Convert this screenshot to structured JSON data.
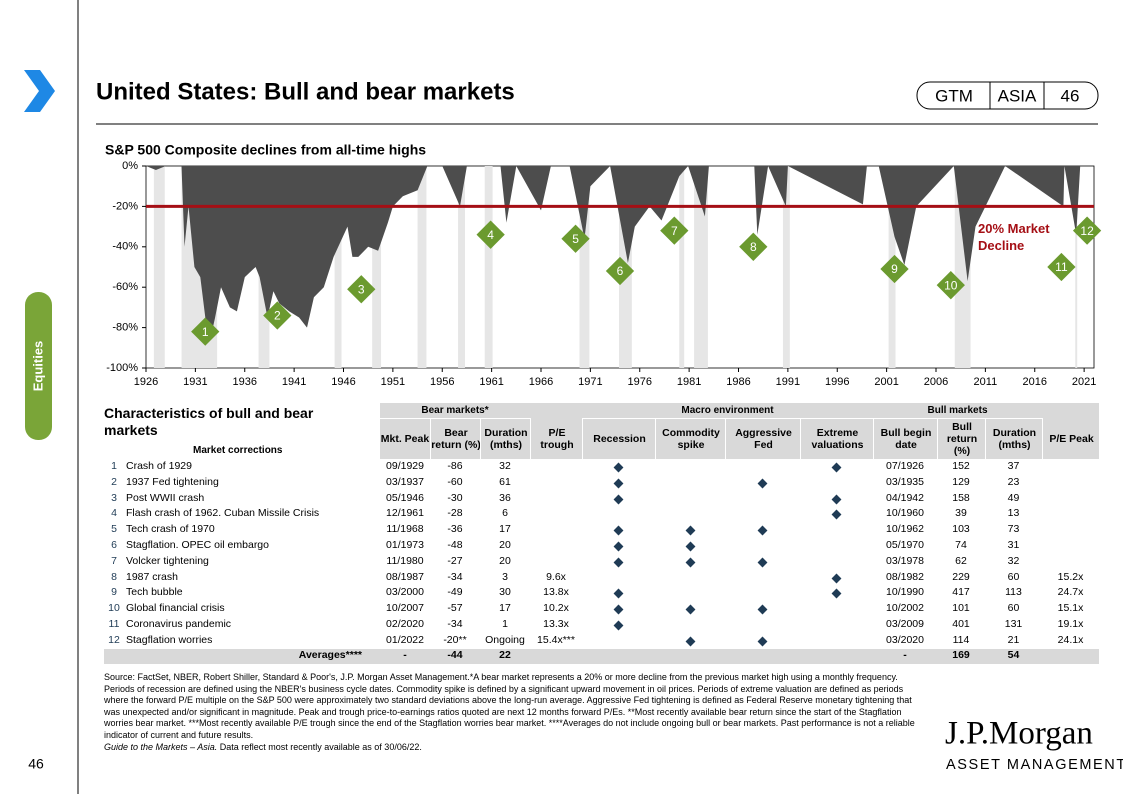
{
  "header": {
    "title": "United States: Bull and bear markets",
    "tags": [
      "GTM",
      "ASIA",
      "46"
    ],
    "section": "Equities",
    "page_number": "46"
  },
  "chart_data": {
    "type": "area",
    "title": "S&P 500 Composite declines from all-time highs",
    "color": "#4d4d4d",
    "x": [
      1926,
      1927,
      1928,
      1929.6,
      1929.9,
      1930.3,
      1930.9,
      1931.5,
      1932.0,
      1932.5,
      1933.0,
      1933.6,
      1934.5,
      1935.2,
      1936,
      1937.1,
      1937.5,
      1938.3,
      1938.9,
      1939.5,
      1940.5,
      1941.5,
      1942.3,
      1943,
      1944,
      1945,
      1946.4,
      1946.9,
      1947.5,
      1948.5,
      1949.5,
      1950.5,
      1951,
      1952,
      1953.5,
      1954.5,
      1956,
      1957.8,
      1958.5,
      1961.9,
      1962.5,
      1963.5,
      1966,
      1967,
      1968.9,
      1970.4,
      1971,
      1973,
      1974.8,
      1975.5,
      1977,
      1978.2,
      1980,
      1980.9,
      1982.6,
      1983,
      1987.6,
      1987.9,
      1989,
      1990.8,
      1991,
      1998.6,
      1999,
      2000.2,
      2001.8,
      2002.8,
      2004,
      2007.8,
      2009.2,
      2010,
      2012,
      2013,
      2018.9,
      2019,
      2020.2,
      2020.6,
      2022.0,
      2022.0
    ],
    "values": [
      0,
      -2,
      0,
      0,
      -40,
      -20,
      -50,
      -55,
      -75,
      -86,
      -75,
      -60,
      -70,
      -72,
      -55,
      -50,
      -55,
      -75,
      -62,
      -68,
      -72,
      -75,
      -80,
      -65,
      -60,
      -45,
      -30,
      -45,
      -45,
      -40,
      -42,
      -28,
      -20,
      -15,
      -12,
      0,
      0,
      -20,
      0,
      0,
      -28,
      0,
      -22,
      0,
      0,
      -36,
      -10,
      0,
      -48,
      -30,
      -20,
      -27,
      -5,
      0,
      -25,
      0,
      0,
      -34,
      0,
      -20,
      0,
      -19,
      0,
      0,
      -35,
      -49,
      -20,
      0,
      -57,
      -30,
      -10,
      0,
      -20,
      0,
      -34,
      0,
      0,
      -20
    ],
    "xlim": [
      1926,
      2022
    ],
    "xticks": [
      1926,
      1931,
      1936,
      1941,
      1946,
      1951,
      1956,
      1961,
      1966,
      1971,
      1976,
      1981,
      1986,
      1991,
      1996,
      2001,
      2006,
      2011,
      2016,
      2021
    ],
    "ylim": [
      -100,
      0
    ],
    "yticks": [
      {
        "value": 0,
        "label": "0%"
      },
      {
        "value": -20,
        "label": "-20%"
      },
      {
        "value": -40,
        "label": "-40%"
      },
      {
        "value": -60,
        "label": "-60%"
      },
      {
        "value": -80,
        "label": "-80%"
      },
      {
        "value": -100,
        "label": "-100%"
      }
    ],
    "threshold": {
      "value": -20,
      "label": "20% Market Decline",
      "color": "#a50f15"
    },
    "recession_color": "#e6e6e6",
    "recessions": [
      [
        1926.8,
        1927.9
      ],
      [
        1929.6,
        1933.2
      ],
      [
        1937.4,
        1938.5
      ],
      [
        1945.1,
        1945.8
      ],
      [
        1948.9,
        1949.8
      ],
      [
        1953.5,
        1954.4
      ],
      [
        1957.6,
        1958.3
      ],
      [
        1960.3,
        1961.1
      ],
      [
        1969.9,
        1970.9
      ],
      [
        1973.9,
        1975.2
      ],
      [
        1980,
        1980.5
      ],
      [
        1981.5,
        1982.9
      ],
      [
        1990.5,
        1991.2
      ],
      [
        2001.2,
        2001.9
      ],
      [
        2007.9,
        2009.5
      ],
      [
        2020.1,
        2020.3
      ]
    ],
    "marker_color": "#6b9a2f",
    "annotations": [
      {
        "label": "1",
        "x": 1932.0,
        "y": -82
      },
      {
        "label": "2",
        "x": 1939.3,
        "y": -74
      },
      {
        "label": "3",
        "x": 1947.8,
        "y": -61
      },
      {
        "label": "4",
        "x": 1960.9,
        "y": -34
      },
      {
        "label": "5",
        "x": 1969.5,
        "y": -36
      },
      {
        "label": "6",
        "x": 1974.0,
        "y": -52
      },
      {
        "label": "7",
        "x": 1979.5,
        "y": -32
      },
      {
        "label": "8",
        "x": 1987.5,
        "y": -40
      },
      {
        "label": "9",
        "x": 2001.8,
        "y": -51
      },
      {
        "label": "10",
        "x": 2007.5,
        "y": -59
      },
      {
        "label": "11",
        "x": 2018.7,
        "y": -50
      },
      {
        "label": "12",
        "x": 2021.3,
        "y": -32
      }
    ]
  },
  "table": {
    "title": "Characteristics  of bull and bear markets",
    "subtitle": "Market corrections",
    "groups": [
      "Bear markets*",
      "Macro environment",
      "Bull markets"
    ],
    "columns": [
      "Mkt. Peak",
      "Bear return (%)",
      "Duration (mths)",
      "P/E trough",
      "Recession",
      "Commodity spike",
      "Aggressive Fed",
      "Extreme valuations",
      "Bull begin date",
      "Bull return (%)",
      "Duration (mths)",
      "P/E Peak"
    ],
    "rows": [
      [
        1,
        "Crash of 1929",
        "09/1929",
        -86,
        32,
        null,
        true,
        false,
        false,
        true,
        "07/1926",
        152,
        37,
        null
      ],
      [
        2,
        "1937 Fed tightening",
        "03/1937",
        -60,
        61,
        null,
        true,
        false,
        true,
        false,
        "03/1935",
        129,
        23,
        null
      ],
      [
        3,
        "Post WWII crash",
        "05/1946",
        -30,
        36,
        null,
        true,
        false,
        false,
        true,
        "04/1942",
        158,
        49,
        null
      ],
      [
        4,
        "Flash crash of 1962. Cuban Missile Crisis",
        "12/1961",
        -28,
        6,
        null,
        false,
        false,
        false,
        true,
        "10/1960",
        39,
        13,
        null
      ],
      [
        5,
        "Tech crash of 1970",
        "11/1968",
        -36,
        17,
        null,
        true,
        true,
        true,
        false,
        "10/1962",
        103,
        73,
        null
      ],
      [
        6,
        "Stagflation. OPEC  oil embargo",
        "01/1973",
        -48,
        20,
        null,
        true,
        true,
        false,
        false,
        "05/1970",
        74,
        31,
        null
      ],
      [
        7,
        "Volcker tightening",
        "11/1980",
        -27,
        20,
        null,
        true,
        true,
        true,
        false,
        "03/1978",
        62,
        32,
        null
      ],
      [
        8,
        "1987 crash",
        "08/1987",
        -34,
        3,
        "9.6x",
        false,
        false,
        false,
        true,
        "08/1982",
        229,
        60,
        "15.2x"
      ],
      [
        9,
        "Tech bubble",
        "03/2000",
        -49,
        30,
        "13.8x",
        true,
        false,
        false,
        true,
        "10/1990",
        417,
        113,
        "24.7x"
      ],
      [
        10,
        "Global financial crisis",
        "10/2007",
        -57,
        17,
        "10.2x",
        true,
        true,
        true,
        false,
        "10/2002",
        101,
        60,
        "15.1x"
      ],
      [
        11,
        "Coronavirus pandemic",
        "02/2020",
        -34,
        1,
        "13.3x",
        true,
        false,
        false,
        false,
        "03/2009",
        401,
        131,
        "19.1x"
      ],
      [
        12,
        "Stagflation worries",
        "01/2022",
        "-20**",
        "Ongoing",
        "15.4x***",
        false,
        true,
        true,
        false,
        "03/2020",
        114,
        21,
        "24.1x"
      ]
    ],
    "averages": [
      null,
      "Averages****",
      "-",
      -44,
      22,
      null,
      null,
      null,
      null,
      null,
      "-",
      169,
      54,
      null
    ]
  },
  "footnote": {
    "source": "Source: FactSet, NBER,  Robert Shiller, Standard & Poor's, J.P. Morgan Asset Management.*A bear market represents a 20% or more decline from the previous market high using a monthly frequency. Periods of recession are defined using the NBER's  business cycle dates. Commodity spike is defined by a significant upward movement in oil prices. Periods of extreme valuation are defined as periods where the forward P/E multiple on the S&P 500 were approximately two standard deviations above the long-run average. Aggressive Fed tightening is defined as Federal Reserve monetary tightening that was unexpected and/or significant in magnitude. Peak and trough price-to-earnings ratios quoted are next 12 months forward P/Es. **Most recently available bear return since the start of the Stagflation worries bear market. ***Most recently available P/E  trough since the end of the Stagflation worries bear market. ****Averages do not include ongoing bull or bear markets. Past performance is not a reliable indicator of current and future results.",
    "guide": "Guide to the Markets – Asia.",
    "note": " Data reflect most recently available as of 30/06/22."
  },
  "logo": {
    "name": "J.P.Morgan",
    "sub": "ASSET MANAGEMENT"
  }
}
